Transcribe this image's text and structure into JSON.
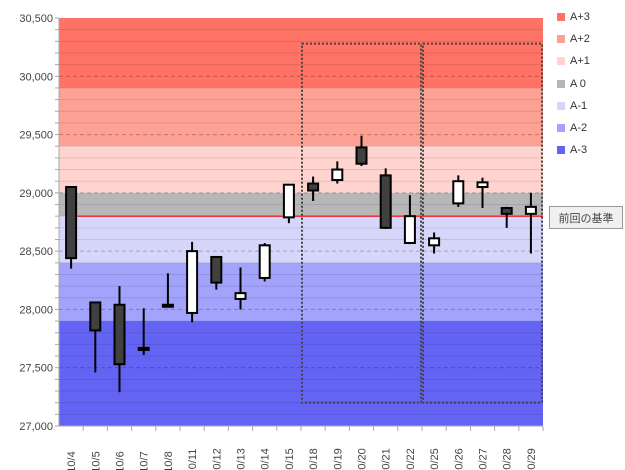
{
  "chart_data": {
    "type": "candlestick",
    "ylim": [
      27000,
      30500
    ],
    "yticks": [
      "27,000",
      "27,500",
      "28,000",
      "28,500",
      "29,000",
      "29,500",
      "30,000",
      "30,500"
    ],
    "ytick_values": [
      27000,
      27500,
      28000,
      28500,
      29000,
      29500,
      30000,
      30500
    ],
    "categories": [
      "10/4",
      "10/5",
      "10/6",
      "10/7",
      "10/8",
      "10/11",
      "10/12",
      "10/13",
      "10/14",
      "10/15",
      "10/18",
      "10/19",
      "10/20",
      "10/21",
      "10/22",
      "10/25",
      "10/26",
      "10/27",
      "10/28",
      "10/29"
    ],
    "open": [
      29050,
      28060,
      28040,
      27670,
      28040,
      27970,
      28450,
      28090,
      28270,
      28790,
      29080,
      29110,
      29390,
      29150,
      28570,
      28550,
      28910,
      29050,
      28870,
      28820
    ],
    "close": [
      28440,
      27820,
      27530,
      27670,
      28040,
      28500,
      28230,
      28140,
      28550,
      29070,
      29020,
      29200,
      29250,
      28700,
      28800,
      28610,
      29100,
      29090,
      28820,
      28880
    ],
    "high": [
      29050,
      28060,
      28200,
      28010,
      28310,
      28580,
      28450,
      28360,
      28570,
      29070,
      29140,
      29270,
      29490,
      29210,
      28980,
      28660,
      29150,
      29130,
      28880,
      29000
    ],
    "low": [
      28350,
      27460,
      27290,
      27610,
      28030,
      27890,
      28170,
      28000,
      28240,
      28740,
      28930,
      29080,
      29230,
      28690,
      28560,
      28480,
      28880,
      28870,
      28700,
      28480
    ],
    "bands": [
      {
        "name": "A+3",
        "from": 29900,
        "to": 30500,
        "color": "#ff7366"
      },
      {
        "name": "A+2",
        "from": 29400,
        "to": 29900,
        "color": "#fda195"
      },
      {
        "name": "A+1",
        "from": 29000,
        "to": 29400,
        "color": "#ffd3cf"
      },
      {
        "name": "A 0",
        "from": 28800,
        "to": 29000,
        "color": "#b7b7b7"
      },
      {
        "name": "A-1",
        "from": 28400,
        "to": 28800,
        "color": "#d6d6fb"
      },
      {
        "name": "A-2",
        "from": 27900,
        "to": 28400,
        "color": "#a3a3fc"
      },
      {
        "name": "A-3",
        "from": 27000,
        "to": 27900,
        "color": "#6464f4"
      }
    ],
    "reference_line": {
      "value": 28800,
      "label": "前回の基準",
      "color": "#ff0000"
    },
    "highlight_ranges": [
      {
        "from": "10/18",
        "to": "10/22",
        "ymin": 27200,
        "ymax": 30280
      },
      {
        "from": "10/25",
        "to": "10/29",
        "ymin": 27200,
        "ymax": 30280
      }
    ],
    "legend_position": "right"
  }
}
